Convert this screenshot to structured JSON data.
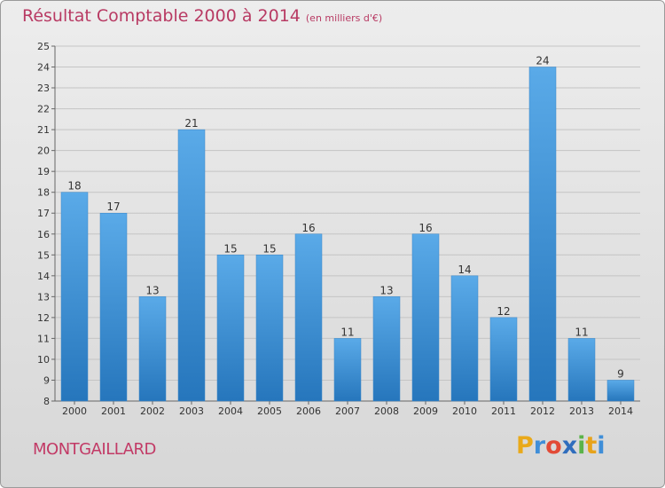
{
  "title": "Résultat Comptable 2000 à 2014",
  "subtitle": "(en milliers d'€)",
  "place": "MONTGAILLARD",
  "brand": [
    "P",
    "r",
    "o",
    "x",
    "i",
    "t",
    "i"
  ],
  "colors": {
    "bar_top": "#5aaae8",
    "bar_bottom": "#2676bc",
    "title": "#b83a63"
  },
  "chart_data": {
    "type": "bar",
    "categories": [
      "2000",
      "2001",
      "2002",
      "2003",
      "2004",
      "2005",
      "2006",
      "2007",
      "2008",
      "2009",
      "2010",
      "2011",
      "2012",
      "2013",
      "2014"
    ],
    "values": [
      18,
      17,
      13,
      21,
      15,
      15,
      16,
      11,
      13,
      16,
      14,
      12,
      24,
      11,
      9
    ],
    "title": "Résultat Comptable 2000 à 2014",
    "subtitle": "(en milliers d'€)",
    "xlabel": "",
    "ylabel": "",
    "ylim": [
      8,
      25
    ],
    "yticks": [
      8,
      9,
      10,
      11,
      12,
      13,
      14,
      15,
      16,
      17,
      18,
      19,
      20,
      21,
      22,
      23,
      24,
      25
    ],
    "grid": true,
    "legend": "none"
  }
}
